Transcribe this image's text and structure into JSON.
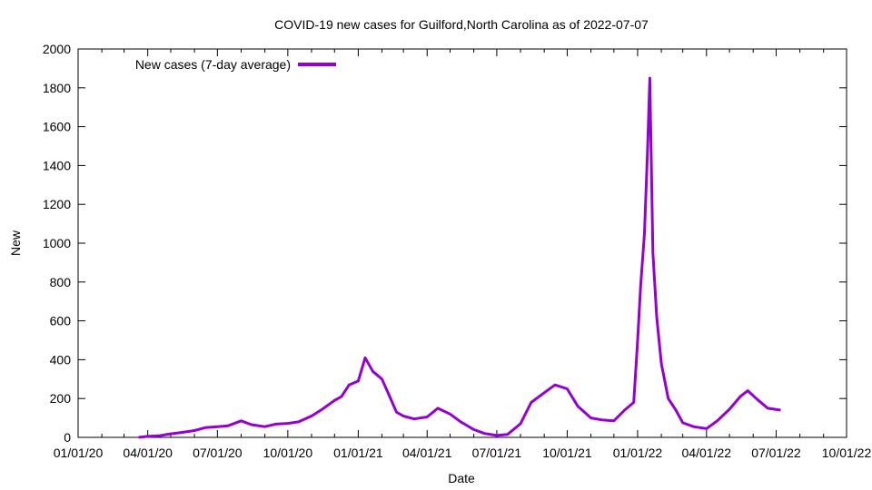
{
  "chart_data": {
    "type": "line",
    "title": "COVID-19 new cases for Guilford,North Carolina as of 2022-07-07",
    "xlabel": "Date",
    "ylabel": "New",
    "xlim": [
      "2020-01-01",
      "2022-10-01"
    ],
    "ylim": [
      0,
      2000
    ],
    "x_ticks": [
      "01/01/20",
      "04/01/20",
      "07/01/20",
      "10/01/20",
      "01/01/21",
      "04/01/21",
      "07/01/21",
      "10/01/21",
      "01/01/22",
      "04/01/22",
      "07/01/22",
      "10/01/22"
    ],
    "y_ticks": [
      0,
      200,
      400,
      600,
      800,
      1000,
      1200,
      1400,
      1600,
      1800,
      2000
    ],
    "grid": false,
    "legend": {
      "placement": "top-left"
    },
    "series": [
      {
        "name": "New cases (7-day average)",
        "color": "#9400d3",
        "points": [
          [
            "2020-03-20",
            0
          ],
          [
            "2020-04-01",
            5
          ],
          [
            "2020-04-15",
            8
          ],
          [
            "2020-05-01",
            18
          ],
          [
            "2020-05-15",
            25
          ],
          [
            "2020-06-01",
            35
          ],
          [
            "2020-06-15",
            50
          ],
          [
            "2020-07-01",
            55
          ],
          [
            "2020-07-15",
            60
          ],
          [
            "2020-08-01",
            85
          ],
          [
            "2020-08-15",
            65
          ],
          [
            "2020-09-01",
            55
          ],
          [
            "2020-09-15",
            68
          ],
          [
            "2020-10-01",
            72
          ],
          [
            "2020-10-15",
            80
          ],
          [
            "2020-11-01",
            110
          ],
          [
            "2020-11-15",
            145
          ],
          [
            "2020-12-01",
            190
          ],
          [
            "2020-12-10",
            210
          ],
          [
            "2020-12-20",
            270
          ],
          [
            "2021-01-01",
            290
          ],
          [
            "2021-01-10",
            410
          ],
          [
            "2021-01-20",
            340
          ],
          [
            "2021-02-01",
            300
          ],
          [
            "2021-02-10",
            220
          ],
          [
            "2021-02-20",
            130
          ],
          [
            "2021-03-01",
            110
          ],
          [
            "2021-03-15",
            95
          ],
          [
            "2021-04-01",
            105
          ],
          [
            "2021-04-15",
            150
          ],
          [
            "2021-05-01",
            120
          ],
          [
            "2021-05-15",
            80
          ],
          [
            "2021-06-01",
            40
          ],
          [
            "2021-06-15",
            20
          ],
          [
            "2021-07-01",
            10
          ],
          [
            "2021-07-15",
            15
          ],
          [
            "2021-08-01",
            70
          ],
          [
            "2021-08-15",
            180
          ],
          [
            "2021-09-01",
            230
          ],
          [
            "2021-09-15",
            270
          ],
          [
            "2021-10-01",
            250
          ],
          [
            "2021-10-15",
            160
          ],
          [
            "2021-11-01",
            100
          ],
          [
            "2021-11-15",
            90
          ],
          [
            "2021-12-01",
            85
          ],
          [
            "2021-12-15",
            140
          ],
          [
            "2021-12-27",
            180
          ],
          [
            "2022-01-01",
            500
          ],
          [
            "2022-01-05",
            780
          ],
          [
            "2022-01-10",
            1050
          ],
          [
            "2022-01-14",
            1480
          ],
          [
            "2022-01-17",
            1850
          ],
          [
            "2022-01-21",
            950
          ],
          [
            "2022-01-26",
            620
          ],
          [
            "2022-02-01",
            380
          ],
          [
            "2022-02-10",
            200
          ],
          [
            "2022-02-20",
            140
          ],
          [
            "2022-03-01",
            75
          ],
          [
            "2022-03-15",
            55
          ],
          [
            "2022-04-01",
            45
          ],
          [
            "2022-04-15",
            85
          ],
          [
            "2022-05-01",
            145
          ],
          [
            "2022-05-15",
            210
          ],
          [
            "2022-05-25",
            240
          ],
          [
            "2022-06-05",
            200
          ],
          [
            "2022-06-20",
            150
          ],
          [
            "2022-07-07",
            140
          ]
        ]
      }
    ]
  }
}
